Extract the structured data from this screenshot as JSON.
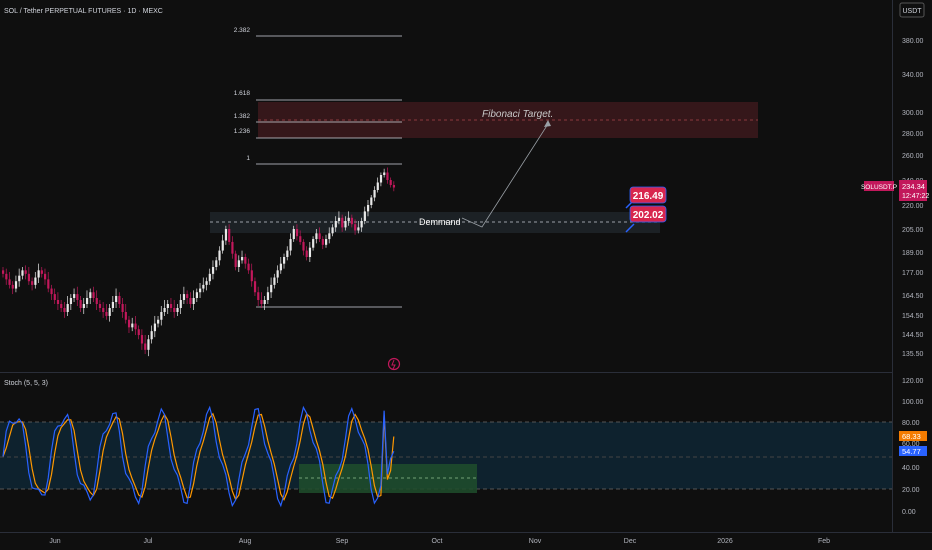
{
  "header": {
    "symbol_title": "SOL / Tether PERPETUAL FUTURES · 1D · MEXC"
  },
  "price_axis": {
    "currency": "USDT",
    "ticks": [
      "380.00",
      "340.00",
      "300.00",
      "280.00",
      "260.00",
      "240.00",
      "220.00",
      "205.00",
      "189.00",
      "177.00",
      "164.50",
      "154.50",
      "144.50",
      "135.50"
    ]
  },
  "last_price": {
    "ticker": "SOLUSDT.P",
    "price": "234.34",
    "countdown": "12:47:22"
  },
  "stoch_panel": {
    "title": "Stoch (5, 5, 3)",
    "ticks": [
      "120.00",
      "100.00",
      "80.00",
      "60.00",
      "40.00",
      "20.00",
      "0.00"
    ],
    "k_value": "68.33",
    "d_value": "54.77"
  },
  "time_axis": [
    "Jun",
    "Jul",
    "Aug",
    "Sep",
    "Oct",
    "Nov",
    "Dec",
    "2026",
    "Feb"
  ],
  "fib_levels": [
    "2.382",
    "1.618",
    "1.382",
    "1.236",
    "1"
  ],
  "annotations": {
    "fib_target_label": "Fibonaci Target.",
    "demand_label": "Demmand",
    "zone_top_price": "216.49",
    "zone_bottom_price": "202.02"
  },
  "colors": {
    "background": "#0f0f0f",
    "bull_candle": "#e8e8e8",
    "bear_candle": "#c2185b",
    "k_line": "#2962ff",
    "d_line": "#ff9800",
    "price_tag": "#c2185b",
    "fib_zone": "#4a1c1f",
    "stoch_band": "#0f2a3a",
    "stoch_green_box": "#1f4d2b"
  },
  "chart_data": {
    "type": "candlestick",
    "symbol": "SOLUSDT.P",
    "timeframe": "1D",
    "ylim": [
      130,
      400
    ],
    "last_close": 234.34,
    "fib_prices": {
      "2.382": 384,
      "1.618": 312,
      "1.382": 291,
      "1.236": 276,
      "1": 253
    },
    "fib_target_zone": [
      275,
      312
    ],
    "demand_zone": [
      202.02,
      216.49
    ],
    "swing_high": 252,
    "swing_low": 158,
    "stoch_k": 68.33,
    "stoch_d": 54.77,
    "stoch_bands": [
      20,
      50,
      80
    ]
  }
}
